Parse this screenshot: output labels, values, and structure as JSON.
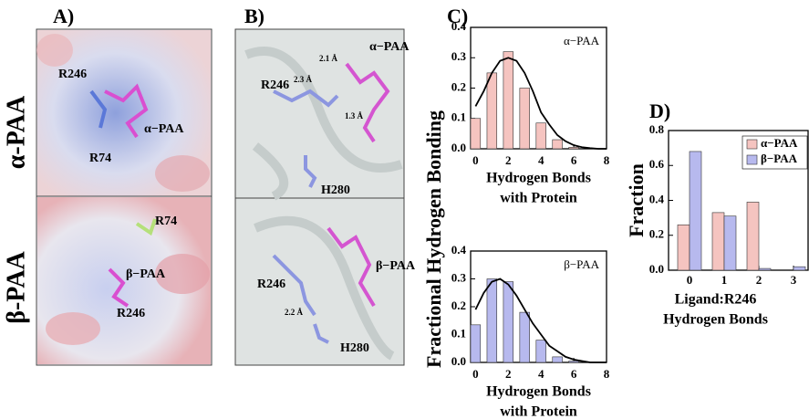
{
  "panel_a": {
    "label": "A)",
    "row_labels": [
      "α-PAA",
      "β-PAA"
    ],
    "annotations": [
      "R246",
      "α−PAA",
      "R74",
      "R74",
      "β−PAA",
      "R246"
    ]
  },
  "panel_b": {
    "label": "B)",
    "annotations": [
      "α−PAA",
      "2.1 Å",
      "2.3 Å",
      "R246",
      "1.3 Å",
      "H280",
      "R246",
      "β−PAA",
      "2.2 Å",
      "H280"
    ]
  },
  "panel_c": {
    "label": "C)",
    "ylabel": "Fractional Hydrogen Bonding"
  },
  "panel_d": {
    "label": "D)"
  },
  "chart_data": [
    {
      "type": "bar",
      "annotation": "α−PAA",
      "xlabel": [
        "Hydrogen Bonds",
        "with Protein"
      ],
      "x": [
        0,
        1,
        2,
        3,
        4,
        5,
        6
      ],
      "series": [
        {
          "color": "#f5c4c0",
          "values": [
            0.1,
            0.25,
            0.32,
            0.2,
            0.085,
            0.03,
            0.005
          ]
        }
      ],
      "fit": {
        "color": "#000000",
        "x": [
          0,
          0.5,
          1,
          1.5,
          2,
          2.5,
          3,
          3.5,
          4,
          4.5,
          5,
          5.5,
          6,
          6.5,
          7,
          7.5,
          8
        ],
        "values": [
          0.14,
          0.19,
          0.25,
          0.29,
          0.3,
          0.29,
          0.25,
          0.19,
          0.12,
          0.08,
          0.045,
          0.025,
          0.012,
          0.005,
          0.002,
          0,
          0
        ]
      },
      "xlim": [
        -0.3,
        8
      ],
      "xticks": [
        0,
        2,
        4,
        6,
        8
      ],
      "ylim": [
        0,
        0.4
      ],
      "yticks": [
        {
          "value": 0,
          "label": "0.0"
        },
        0.1,
        0.2,
        0.3,
        0.4
      ]
    },
    {
      "type": "bar",
      "annotation": "β−PAA",
      "xlabel": [
        "Hydrogen Bonds",
        "with Protein"
      ],
      "x": [
        0,
        1,
        2,
        3,
        4,
        5,
        6
      ],
      "series": [
        {
          "color": "#b7b9ee",
          "values": [
            0.135,
            0.3,
            0.29,
            0.18,
            0.08,
            0.02,
            0.005
          ]
        }
      ],
      "fit": {
        "color": "#000000",
        "x": [
          0,
          0.5,
          1,
          1.5,
          2,
          2.5,
          3,
          3.5,
          4,
          4.5,
          5,
          5.5,
          6,
          6.5,
          7,
          7.5,
          8
        ],
        "values": [
          0.19,
          0.25,
          0.29,
          0.3,
          0.28,
          0.24,
          0.19,
          0.14,
          0.1,
          0.06,
          0.04,
          0.02,
          0.01,
          0.005,
          0,
          0,
          0
        ]
      },
      "xlim": [
        -0.3,
        8
      ],
      "xticks": [
        0,
        2,
        4,
        6,
        8
      ],
      "ylim": [
        0,
        0.4
      ],
      "yticks": [
        {
          "value": 0,
          "label": "0.0"
        },
        0.1,
        0.2,
        0.3,
        0.4
      ]
    },
    {
      "type": "bar",
      "ylabel": "Fraction",
      "xlabel": [
        "Ligand:R246",
        "Hydrogen Bonds"
      ],
      "categories": [
        "0",
        "1",
        "2",
        "3"
      ],
      "series": [
        {
          "name": "α−PAA",
          "color": "#f5c4c0",
          "values": [
            0.26,
            0.33,
            0.39,
            0.0
          ]
        },
        {
          "name": "β−PAA",
          "color": "#b7b9ee",
          "values": [
            0.68,
            0.31,
            0.01,
            0.02
          ]
        }
      ],
      "ylim": [
        0,
        0.8
      ],
      "yticks": [
        {
          "value": 0,
          "label": "0.0"
        },
        0.2,
        0.4,
        0.6,
        0.8
      ],
      "legend": "upper right"
    }
  ]
}
